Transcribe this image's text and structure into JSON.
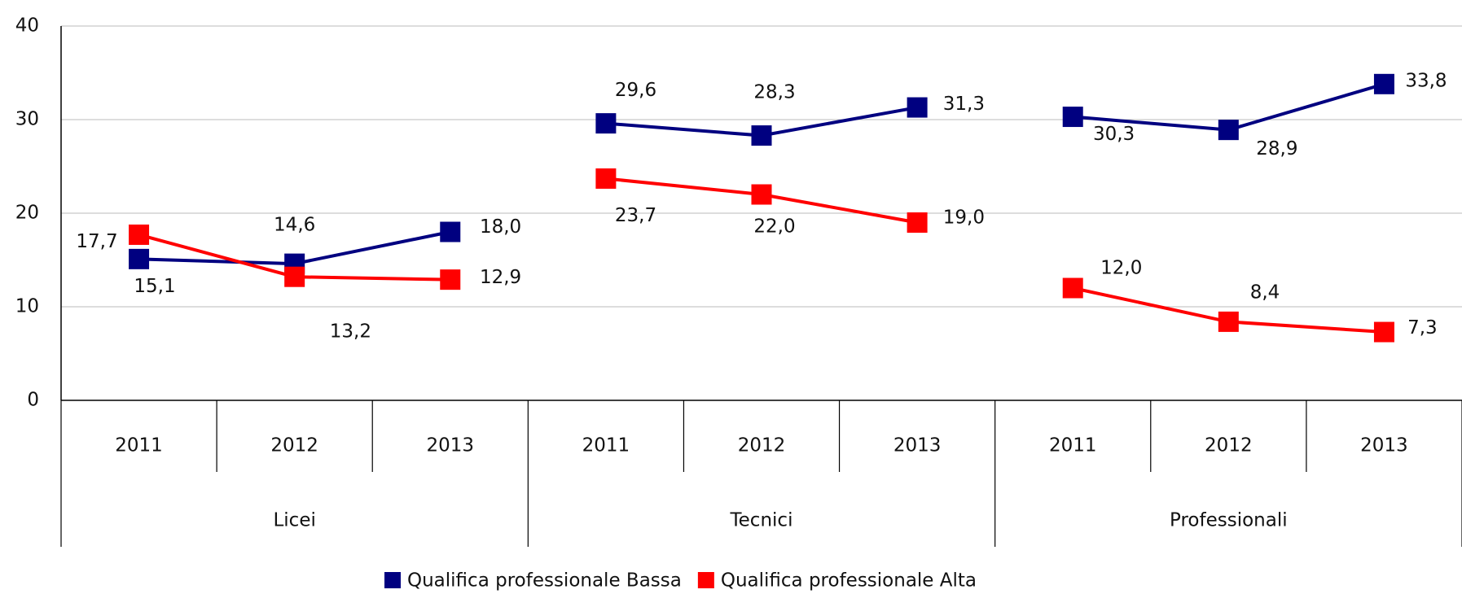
{
  "chart_data": {
    "type": "line",
    "categories": [
      "2011",
      "2012",
      "2013",
      "2011",
      "2012",
      "2013",
      "2011",
      "2012",
      "2013"
    ],
    "groups": [
      "Licei",
      "Tecnici",
      "Professionali"
    ],
    "series": [
      {
        "name": "Qualifica professionale Bassa",
        "color": "#000080",
        "values": [
          15.1,
          14.6,
          18.0,
          29.6,
          28.3,
          31.3,
          30.3,
          28.9,
          33.8
        ],
        "value_labels": [
          "15,1",
          "14,6",
          "18,0",
          "29,6",
          "28,3",
          "31,3",
          "30,3",
          "28,9",
          "33,8"
        ]
      },
      {
        "name": "Qualifica professionale Alta",
        "color": "#ff0000",
        "values": [
          17.7,
          13.2,
          12.9,
          23.7,
          22.0,
          19.0,
          12.0,
          8.4,
          7.3
        ],
        "value_labels": [
          "17,7",
          "13,2",
          "12,9",
          "23,7",
          "22,0",
          "19,0",
          "12,0",
          "8,4",
          "7,3"
        ]
      }
    ],
    "ylim": [
      0,
      40
    ],
    "yticks": [
      0,
      10,
      20,
      30,
      40
    ],
    "grid": true,
    "legend": "bottom"
  }
}
